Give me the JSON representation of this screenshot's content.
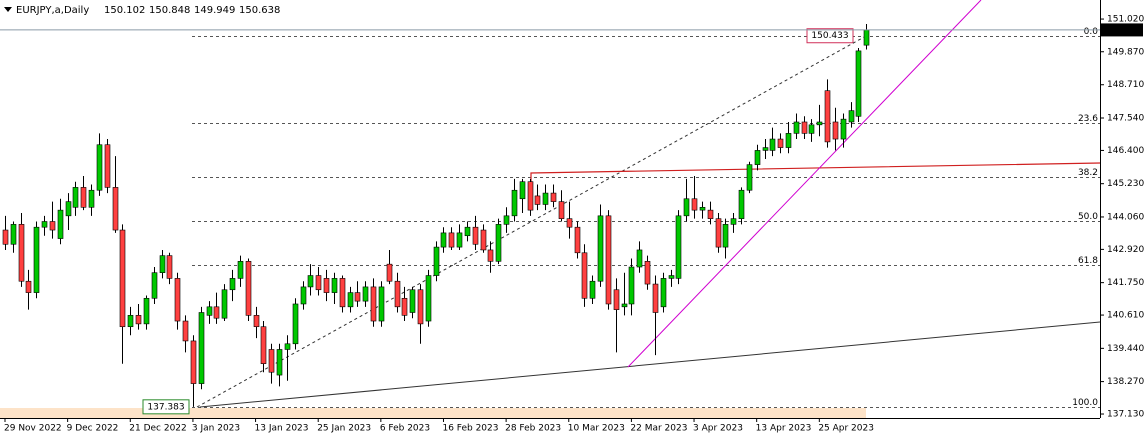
{
  "chart_data": {
    "type": "candlestick",
    "symbol": "EURJPY,a,Daily",
    "up_color": "#00c800",
    "down_color": "#ff4040",
    "ylim": [
      136.99,
      151.69
    ],
    "yticks": [
      {
        "value": 151.02,
        "label": "151.020"
      },
      {
        "value": 149.87,
        "label": "149.870"
      },
      {
        "value": 148.71,
        "label": "148.710"
      },
      {
        "value": 147.54,
        "label": "147.540"
      },
      {
        "value": 146.4,
        "label": "146.400"
      },
      {
        "value": 145.23,
        "label": "145.230"
      },
      {
        "value": 144.06,
        "label": "144.060"
      },
      {
        "value": 142.92,
        "label": "142.920"
      },
      {
        "value": 141.75,
        "label": "141.750"
      },
      {
        "value": 140.61,
        "label": "140.610"
      },
      {
        "value": 139.44,
        "label": "139.440"
      },
      {
        "value": 138.27,
        "label": "138.270"
      },
      {
        "value": 137.13,
        "label": "137.130"
      }
    ],
    "fibo": [
      {
        "label": "0.0",
        "price": 150.433
      },
      {
        "label": "23.6",
        "price": 147.353
      },
      {
        "label": "38.2",
        "price": 145.448
      },
      {
        "label": "50.0",
        "price": 143.908
      },
      {
        "label": "61.8",
        "price": 142.368
      },
      {
        "label": "100.0",
        "price": 137.383
      }
    ],
    "categories": [
      "29 Nov 2022",
      null,
      null,
      null,
      null,
      null,
      null,
      null,
      "9 Dec 2022",
      null,
      null,
      null,
      null,
      null,
      null,
      null,
      "21 Dec 2022",
      null,
      null,
      null,
      null,
      null,
      null,
      null,
      "3 Jan 2023",
      null,
      null,
      null,
      null,
      null,
      null,
      null,
      "13 Jan 2023",
      null,
      null,
      null,
      null,
      null,
      null,
      null,
      "25 Jan 2023",
      null,
      null,
      null,
      null,
      null,
      null,
      null,
      "6 Feb 2023",
      null,
      null,
      null,
      null,
      null,
      null,
      null,
      "16 Feb 2023",
      null,
      null,
      null,
      null,
      null,
      null,
      null,
      "28 Feb 2023",
      null,
      null,
      null,
      null,
      null,
      null,
      null,
      "10 Mar 2023",
      null,
      null,
      null,
      null,
      null,
      null,
      null,
      "22 Mar 2023",
      null,
      null,
      null,
      null,
      null,
      null,
      null,
      "3 Apr 2023",
      null,
      null,
      null,
      null,
      null,
      null,
      null,
      "13 Apr 2023",
      null,
      null,
      null,
      null,
      null,
      null,
      null,
      "25 Apr 2023",
      null,
      null,
      null,
      null,
      null,
      null
    ],
    "ohlc": [
      [
        143.6,
        144.1,
        142.9,
        143.1
      ],
      [
        143.1,
        143.9,
        142.8,
        143.8
      ],
      [
        143.8,
        144.2,
        141.6,
        141.8
      ],
      [
        141.8,
        142.2,
        140.8,
        141.4
      ],
      [
        141.4,
        143.9,
        141.2,
        143.7
      ],
      [
        143.7,
        144.1,
        143.4,
        143.9
      ],
      [
        143.9,
        144.6,
        143.3,
        143.6
      ],
      [
        143.3,
        144.7,
        143.1,
        144.3
      ],
      [
        144.1,
        144.9,
        143.6,
        144.6
      ],
      [
        144.4,
        145.3,
        144.1,
        145.1
      ],
      [
        145.1,
        145.5,
        144.3,
        144.4
      ],
      [
        144.4,
        145.2,
        144.1,
        145.0
      ],
      [
        145.0,
        147.0,
        144.8,
        146.6
      ],
      [
        146.6,
        146.8,
        144.9,
        145.1
      ],
      [
        145.1,
        146.2,
        143.5,
        143.6
      ],
      [
        143.6,
        143.8,
        138.9,
        140.2
      ],
      [
        140.2,
        140.9,
        139.9,
        140.6
      ],
      [
        140.6,
        141.0,
        140.1,
        140.3
      ],
      [
        140.3,
        141.3,
        140.1,
        141.2
      ],
      [
        141.2,
        142.3,
        141.0,
        142.1
      ],
      [
        142.1,
        142.9,
        141.9,
        142.7
      ],
      [
        142.7,
        142.8,
        141.7,
        141.9
      ],
      [
        141.9,
        142.1,
        140.1,
        140.4
      ],
      [
        140.4,
        140.6,
        139.3,
        139.7
      ],
      [
        139.7,
        139.9,
        137.383,
        138.2
      ],
      [
        138.2,
        140.9,
        138.0,
        140.7
      ],
      [
        140.6,
        141.1,
        140.3,
        140.9
      ],
      [
        140.9,
        141.4,
        140.3,
        140.5
      ],
      [
        140.5,
        141.7,
        140.4,
        141.5
      ],
      [
        141.5,
        142.2,
        141.1,
        141.9
      ],
      [
        141.9,
        142.7,
        141.6,
        142.5
      ],
      [
        142.5,
        142.6,
        140.4,
        140.6
      ],
      [
        140.6,
        140.9,
        139.8,
        140.2
      ],
      [
        140.2,
        140.4,
        138.6,
        138.9
      ],
      [
        139.4,
        139.6,
        138.2,
        138.6
      ],
      [
        138.5,
        139.6,
        138.1,
        139.4
      ],
      [
        139.4,
        139.9,
        138.3,
        139.6
      ],
      [
        139.6,
        141.2,
        139.4,
        141.0
      ],
      [
        141.0,
        141.8,
        140.8,
        141.6
      ],
      [
        141.6,
        142.4,
        141.3,
        142.0
      ],
      [
        142.0,
        142.3,
        141.3,
        141.5
      ],
      [
        141.9,
        142.2,
        141.1,
        141.4
      ],
      [
        141.4,
        142.1,
        141.0,
        141.9
      ],
      [
        141.9,
        142.0,
        140.7,
        140.9
      ],
      [
        140.9,
        141.6,
        140.7,
        141.4
      ],
      [
        141.4,
        141.8,
        140.9,
        141.1
      ],
      [
        141.1,
        141.8,
        140.9,
        141.6
      ],
      [
        141.6,
        141.9,
        140.2,
        140.4
      ],
      [
        140.4,
        141.8,
        140.2,
        141.6
      ],
      [
        142.4,
        142.9,
        141.7,
        141.8
      ],
      [
        141.8,
        142.1,
        140.7,
        140.9
      ],
      [
        141.2,
        141.6,
        140.4,
        140.6
      ],
      [
        140.7,
        141.6,
        140.5,
        141.5
      ],
      [
        141.5,
        141.7,
        139.6,
        140.3
      ],
      [
        140.4,
        142.2,
        140.2,
        142.0
      ],
      [
        142.0,
        143.2,
        141.8,
        143.0
      ],
      [
        143.0,
        143.7,
        142.8,
        143.5
      ],
      [
        143.5,
        143.7,
        142.9,
        143.0
      ],
      [
        143.0,
        143.8,
        142.9,
        143.5
      ],
      [
        143.4,
        143.9,
        143.2,
        143.7
      ],
      [
        143.7,
        144.1,
        142.9,
        143.1
      ],
      [
        143.6,
        143.8,
        142.8,
        142.9
      ],
      [
        142.9,
        143.2,
        142.1,
        142.5
      ],
      [
        142.5,
        144.0,
        142.4,
        143.8
      ],
      [
        143.8,
        144.4,
        143.5,
        144.1
      ],
      [
        144.1,
        145.4,
        143.9,
        145.0
      ],
      [
        144.7,
        145.4,
        144.2,
        145.3
      ],
      [
        145.3,
        145.4,
        144.1,
        144.3
      ],
      [
        144.8,
        145.2,
        144.3,
        144.5
      ],
      [
        144.5,
        145.2,
        144.3,
        144.9
      ],
      [
        144.9,
        145.2,
        144.4,
        144.6
      ],
      [
        144.6,
        145.0,
        143.9,
        144.0
      ],
      [
        144.0,
        144.6,
        143.3,
        143.7
      ],
      [
        143.7,
        143.9,
        142.6,
        142.8
      ],
      [
        142.8,
        143.1,
        140.9,
        141.2
      ],
      [
        141.2,
        142.0,
        141.0,
        141.8
      ],
      [
        141.8,
        144.5,
        141.6,
        144.1
      ],
      [
        144.1,
        144.3,
        140.8,
        141.0
      ],
      [
        141.5,
        141.9,
        139.3,
        140.8
      ],
      [
        140.9,
        142.1,
        140.6,
        141.0
      ],
      [
        141.0,
        142.6,
        140.6,
        142.3
      ],
      [
        142.3,
        143.2,
        142.1,
        142.9
      ],
      [
        142.5,
        142.7,
        141.5,
        141.7
      ],
      [
        141.7,
        142.0,
        139.2,
        140.7
      ],
      [
        140.9,
        142.1,
        140.7,
        141.9
      ],
      [
        141.9,
        142.2,
        141.6,
        142.0
      ],
      [
        141.9,
        144.3,
        141.7,
        144.1
      ],
      [
        144.1,
        145.4,
        143.9,
        144.7
      ],
      [
        144.7,
        145.5,
        144.0,
        144.3
      ],
      [
        144.3,
        144.6,
        144.0,
        144.4
      ],
      [
        144.3,
        144.6,
        143.8,
        144.0
      ],
      [
        144.0,
        144.2,
        142.8,
        143.0
      ],
      [
        143.0,
        144.0,
        142.6,
        143.8
      ],
      [
        143.8,
        144.2,
        143.5,
        144.0
      ],
      [
        144.0,
        145.1,
        143.8,
        145.0
      ],
      [
        145.0,
        146.0,
        144.9,
        145.9
      ],
      [
        145.9,
        146.6,
        145.7,
        146.4
      ],
      [
        146.4,
        146.8,
        146.1,
        146.5
      ],
      [
        146.4,
        147.2,
        146.2,
        146.8
      ],
      [
        146.8,
        147.0,
        146.3,
        146.5
      ],
      [
        146.5,
        147.4,
        146.3,
        147.0
      ],
      [
        147.0,
        147.7,
        146.8,
        147.4
      ],
      [
        147.4,
        147.6,
        146.8,
        147.0
      ],
      [
        147.0,
        147.5,
        146.7,
        147.3
      ],
      [
        147.3,
        148.0,
        146.9,
        147.4
      ],
      [
        148.5,
        148.9,
        146.5,
        146.7
      ],
      [
        147.4,
        147.9,
        146.4,
        146.8
      ],
      [
        146.8,
        147.7,
        146.5,
        147.5
      ],
      [
        147.4,
        148.1,
        147.2,
        147.8
      ],
      [
        147.6,
        150.0,
        147.4,
        149.9
      ],
      [
        150.102,
        150.848,
        149.949,
        150.638
      ]
    ]
  }
}
